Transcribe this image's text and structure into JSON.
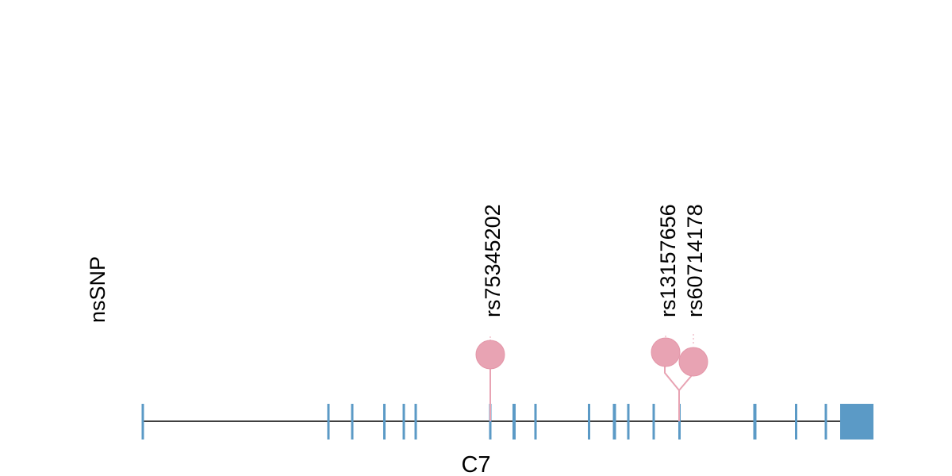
{
  "track_label": "nsSNP",
  "gene": {
    "name": "C7"
  },
  "colors": {
    "exon": "#5b9ac6",
    "snp": "#e8a3b3",
    "backbone": "#000000"
  },
  "snps": [
    {
      "id": "rs75345202"
    },
    {
      "id": "rs13157656"
    },
    {
      "id": "rs60714178"
    }
  ]
}
